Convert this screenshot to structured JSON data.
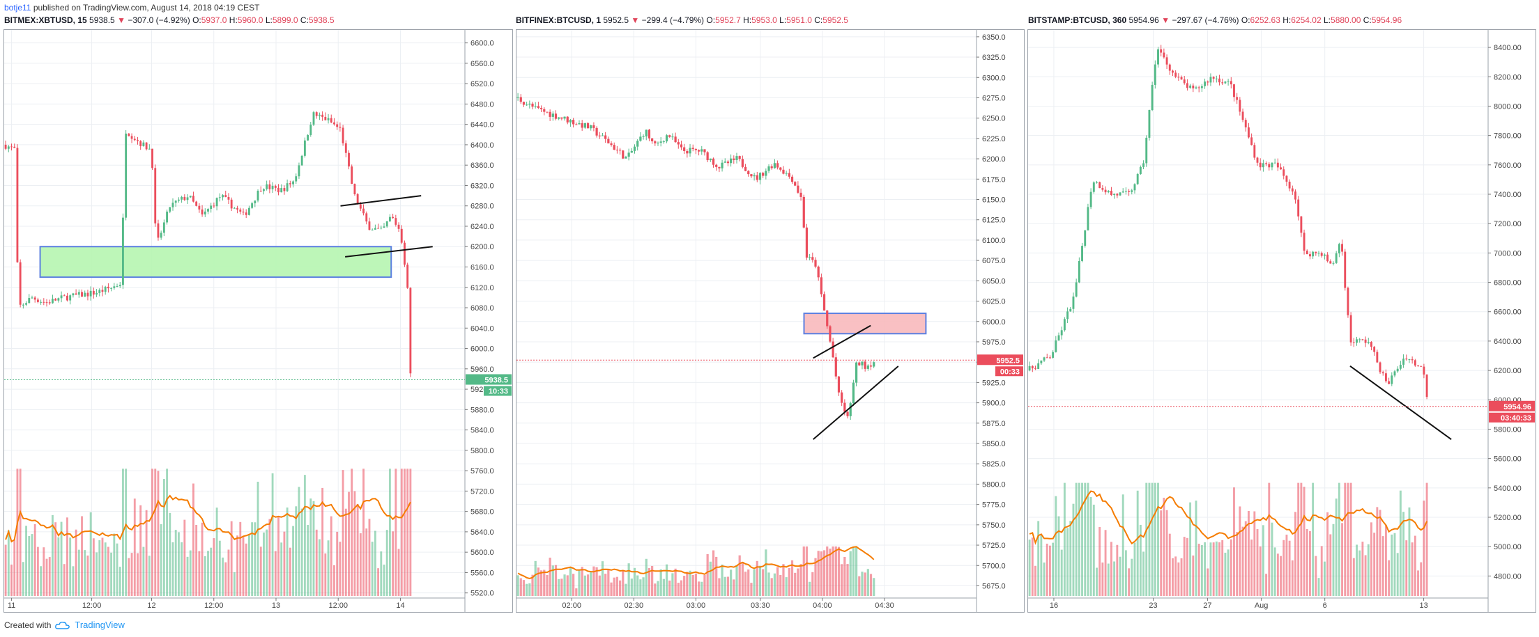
{
  "header": {
    "author": "botje11",
    "published_text": "published on TradingView.com, August 14, 2018 04:19 CEST"
  },
  "footer": {
    "created_with": "Created with",
    "brand": "TradingView"
  },
  "colors": {
    "up": "#53b987",
    "down": "#eb4d5c",
    "ma": "#f57c00",
    "grid": "#eceff3",
    "green_zone": "#b6f5b0",
    "red_zone": "#f8b9bc",
    "zone_border": "#5b7fe0"
  },
  "panels": [
    {
      "symbol": "BITMEX:XBTUSD, 15",
      "last": "5938.5",
      "change": "−307.0 (−4.92%)",
      "o_label": "O:",
      "o": "5937.0",
      "h_label": "H:",
      "h": "5960.0",
      "l_label": "L:",
      "l": "5899.0",
      "c_label": "C:",
      "c": "5938.5",
      "price_tag": "5938.5",
      "timer_tag": "10:33"
    },
    {
      "symbol": "BITFINEX:BTCUSD, 1",
      "last": "5952.5",
      "change": "−299.4 (−4.79%)",
      "o_label": "O:",
      "o": "5952.7",
      "h_label": "H:",
      "h": "5953.0",
      "l_label": "L:",
      "l": "5951.0",
      "c_label": "C:",
      "c": "5952.5",
      "price_tag": "5952.5",
      "timer_tag": "00:33"
    },
    {
      "symbol": "BITSTAMP:BTCUSD, 360",
      "last": "5954.96",
      "change": "−297.67 (−4.76%)",
      "o_label": "O:",
      "o": "6252.63",
      "h_label": "H:",
      "h": "6254.02",
      "l_label": "L:",
      "l": "5880.00",
      "c_label": "C:",
      "c": "5954.96",
      "price_tag": "5954.96",
      "timer_tag": "03:40:33"
    }
  ],
  "chart_data": [
    {
      "type": "candlestick",
      "title": "BITMEX:XBTUSD, 15",
      "y_ticks": [
        "6600.0",
        "6560.0",
        "6520.0",
        "6480.0",
        "6440.0",
        "6400.0",
        "6360.0",
        "6320.0",
        "6280.0",
        "6240.0",
        "6200.0",
        "6160.0",
        "6120.0",
        "6080.0",
        "6040.0",
        "6000.0",
        "5960.0",
        "5920.0",
        "5880.0",
        "5840.0",
        "5800.0",
        "5760.0",
        "5720.0",
        "5680.0",
        "5640.0",
        "5600.0",
        "5560.0",
        "5520.0"
      ],
      "ylim": [
        5510,
        6620
      ],
      "x_ticks": [
        "11",
        "12:00",
        "12",
        "12:00",
        "13",
        "12:00",
        "14"
      ],
      "x_tick_pos": [
        0.016,
        0.19,
        0.32,
        0.455,
        0.59,
        0.725,
        0.86
      ],
      "waypoints": [
        [
          0,
          6400
        ],
        [
          0.025,
          6390
        ],
        [
          0.03,
          6080
        ],
        [
          0.06,
          6100
        ],
        [
          0.09,
          6090
        ],
        [
          0.13,
          6100
        ],
        [
          0.2,
          6110
        ],
        [
          0.235,
          6120
        ],
        [
          0.255,
          6130
        ],
        [
          0.262,
          6430
        ],
        [
          0.3,
          6400
        ],
        [
          0.32,
          6390
        ],
        [
          0.33,
          6200
        ],
        [
          0.36,
          6280
        ],
        [
          0.4,
          6300
        ],
        [
          0.43,
          6260
        ],
        [
          0.47,
          6300
        ],
        [
          0.52,
          6260
        ],
        [
          0.56,
          6320
        ],
        [
          0.6,
          6310
        ],
        [
          0.63,
          6330
        ],
        [
          0.67,
          6460
        ],
        [
          0.7,
          6450
        ],
        [
          0.73,
          6430
        ],
        [
          0.76,
          6300
        ],
        [
          0.79,
          6240
        ],
        [
          0.82,
          6230
        ],
        [
          0.84,
          6260
        ],
        [
          0.86,
          6230
        ],
        [
          0.875,
          6130
        ],
        [
          0.88,
          5960
        ],
        [
          0.885,
          5938
        ]
      ],
      "volume_scale": 0.9,
      "ma": true,
      "zone": {
        "type": "demand",
        "y": [
          6200,
          6140
        ],
        "x": [
          0.078,
          0.84
        ]
      },
      "lines": [
        [
          [
            0.73,
            6280
          ],
          [
            0.905,
            6300
          ]
        ],
        [
          [
            0.74,
            6180
          ],
          [
            0.93,
            6200
          ]
        ]
      ],
      "last": 5938.5
    },
    {
      "type": "candlestick",
      "title": "BITFINEX:BTCUSD, 1",
      "y_ticks": [
        "6350.0",
        "6325.0",
        "6300.0",
        "6275.0",
        "6250.0",
        "6225.0",
        "6200.0",
        "6175.0",
        "6150.0",
        "6125.0",
        "6100.0",
        "6075.0",
        "6050.0",
        "6025.0",
        "6000.0",
        "5975.0",
        "5950.0",
        "5925.0",
        "5900.0",
        "5875.0",
        "5850.0",
        "5825.0",
        "5800.0",
        "5775.0",
        "5750.0",
        "5725.0",
        "5700.0",
        "5675.0"
      ],
      "ylim": [
        5660,
        6355
      ],
      "x_ticks": [
        "02:00",
        "02:30",
        "03:00",
        "03:30",
        "04:00",
        "04:30"
      ],
      "x_tick_pos": [
        0.12,
        0.255,
        0.39,
        0.53,
        0.665,
        0.8
      ],
      "waypoints": [
        [
          0,
          6275
        ],
        [
          0.04,
          6262
        ],
        [
          0.1,
          6250
        ],
        [
          0.16,
          6238
        ],
        [
          0.2,
          6220
        ],
        [
          0.24,
          6200
        ],
        [
          0.28,
          6235
        ],
        [
          0.3,
          6215
        ],
        [
          0.33,
          6230
        ],
        [
          0.36,
          6210
        ],
        [
          0.4,
          6210
        ],
        [
          0.44,
          6190
        ],
        [
          0.48,
          6200
        ],
        [
          0.52,
          6175
        ],
        [
          0.56,
          6195
        ],
        [
          0.6,
          6175
        ],
        [
          0.62,
          6150
        ],
        [
          0.63,
          6080
        ],
        [
          0.65,
          6070
        ],
        [
          0.67,
          6010
        ],
        [
          0.69,
          5950
        ],
        [
          0.7,
          5910
        ],
        [
          0.72,
          5880
        ],
        [
          0.74,
          5950
        ],
        [
          0.76,
          5945
        ],
        [
          0.78,
          5952
        ]
      ],
      "volume_scale": 0.35,
      "ma": true,
      "zone": {
        "type": "supply",
        "y": [
          6010,
          5985
        ],
        "x": [
          0.625,
          0.89
        ]
      },
      "lines": [
        [
          [
            0.645,
            5955
          ],
          [
            0.77,
            5995
          ]
        ],
        [
          [
            0.645,
            5855
          ],
          [
            0.83,
            5945
          ]
        ]
      ],
      "last": 5952.5
    },
    {
      "type": "candlestick",
      "title": "BITSTAMP:BTCUSD, 360",
      "y_ticks": [
        "8400.00",
        "8200.00",
        "8000.00",
        "7800.00",
        "7600.00",
        "7400.00",
        "7200.00",
        "7000.00",
        "6800.00",
        "6600.00",
        "6400.00",
        "6200.00",
        "6000.00",
        "5800.00",
        "5600.00",
        "5400.00",
        "5200.00",
        "5000.00",
        "4800.00"
      ],
      "ylim": [
        4650,
        8500
      ],
      "x_ticks": [
        "16",
        "23",
        "27",
        "Aug",
        "6",
        "13"
      ],
      "x_tick_pos": [
        0.056,
        0.272,
        0.39,
        0.507,
        0.645,
        0.86
      ],
      "waypoints": [
        [
          0,
          6200
        ],
        [
          0.05,
          6300
        ],
        [
          0.1,
          6700
        ],
        [
          0.14,
          7500
        ],
        [
          0.18,
          7400
        ],
        [
          0.22,
          7400
        ],
        [
          0.25,
          7600
        ],
        [
          0.28,
          8400
        ],
        [
          0.32,
          8200
        ],
        [
          0.36,
          8100
        ],
        [
          0.4,
          8200
        ],
        [
          0.44,
          8150
        ],
        [
          0.5,
          7600
        ],
        [
          0.54,
          7600
        ],
        [
          0.58,
          7400
        ],
        [
          0.6,
          7000
        ],
        [
          0.64,
          7000
        ],
        [
          0.66,
          6900
        ],
        [
          0.68,
          7100
        ],
        [
          0.7,
          6400
        ],
        [
          0.74,
          6400
        ],
        [
          0.78,
          6100
        ],
        [
          0.82,
          6300
        ],
        [
          0.86,
          6200
        ],
        [
          0.87,
          5955
        ]
      ],
      "volume_scale": 0.8,
      "ma": true,
      "lines": [
        [
          [
            0.7,
            6230
          ],
          [
            0.92,
            5730
          ]
        ]
      ],
      "last": 5954.96
    }
  ]
}
